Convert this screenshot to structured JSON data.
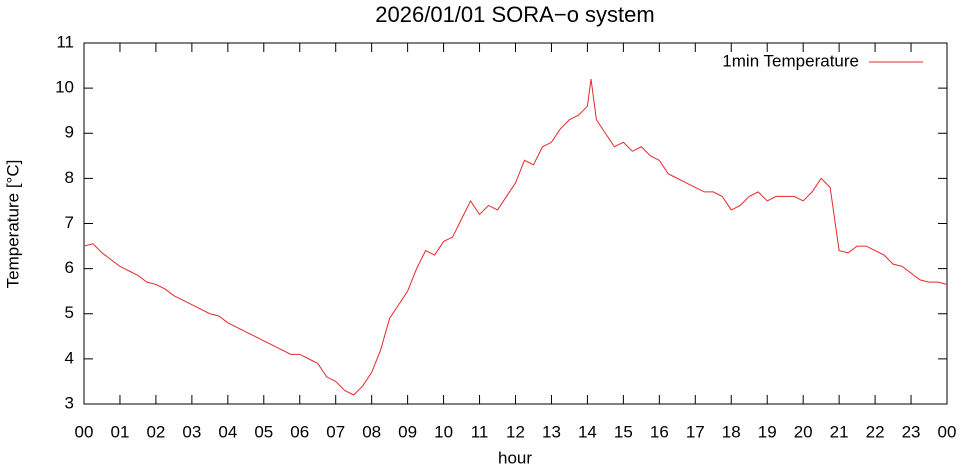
{
  "chart_data": {
    "type": "line",
    "title": "2026/01/01 SORA−o system",
    "x_label": "hour",
    "y_label": "Temperature [°C]",
    "x": [
      0,
      0.25,
      0.5,
      0.75,
      1,
      1.25,
      1.5,
      1.75,
      2,
      2.25,
      2.5,
      2.75,
      3,
      3.25,
      3.5,
      3.75,
      4,
      4.25,
      4.5,
      4.75,
      5,
      5.25,
      5.5,
      5.75,
      6,
      6.25,
      6.5,
      6.75,
      7,
      7.25,
      7.5,
      7.75,
      8,
      8.25,
      8.5,
      8.75,
      9,
      9.25,
      9.5,
      9.75,
      10,
      10.25,
      10.5,
      10.75,
      11,
      11.25,
      11.5,
      11.75,
      12,
      12.25,
      12.5,
      12.75,
      13,
      13.25,
      13.5,
      13.75,
      14,
      14.1,
      14.25,
      14.5,
      14.75,
      15,
      15.25,
      15.5,
      15.75,
      16,
      16.25,
      16.5,
      16.75,
      17,
      17.25,
      17.5,
      17.75,
      18,
      18.25,
      18.5,
      18.75,
      19,
      19.25,
      19.5,
      19.75,
      20,
      20.25,
      20.5,
      20.75,
      21,
      21.25,
      21.5,
      21.75,
      22,
      22.25,
      22.5,
      22.75,
      23,
      23.25,
      23.5,
      23.75,
      24
    ],
    "series": [
      {
        "name": "1min Temperature",
        "color": "#e8282a",
        "values": [
          6.5,
          6.55,
          6.35,
          6.2,
          6.05,
          5.95,
          5.85,
          5.7,
          5.65,
          5.55,
          5.4,
          5.3,
          5.2,
          5.1,
          5.0,
          4.95,
          4.8,
          4.7,
          4.6,
          4.5,
          4.4,
          4.3,
          4.2,
          4.1,
          4.1,
          4.0,
          3.9,
          3.6,
          3.5,
          3.3,
          3.2,
          3.4,
          3.7,
          4.2,
          4.9,
          5.2,
          5.5,
          6.0,
          6.4,
          6.3,
          6.6,
          6.7,
          7.1,
          7.5,
          7.2,
          7.4,
          7.3,
          7.6,
          7.9,
          8.4,
          8.3,
          8.7,
          8.8,
          9.1,
          9.3,
          9.4,
          9.6,
          10.2,
          9.3,
          9.0,
          8.7,
          8.8,
          8.6,
          8.7,
          8.5,
          8.4,
          8.1,
          8.0,
          7.9,
          7.8,
          7.7,
          7.7,
          7.6,
          7.3,
          7.4,
          7.6,
          7.7,
          7.5,
          7.6,
          7.6,
          7.6,
          7.5,
          7.7,
          8.0,
          7.8,
          6.4,
          6.35,
          6.5,
          6.5,
          6.4,
          6.3,
          6.1,
          6.05,
          5.9,
          5.75,
          5.7,
          5.7,
          5.65
        ]
      }
    ],
    "xlim": [
      0,
      24
    ],
    "xticks": [
      {
        "value": 0,
        "label": "00"
      },
      {
        "value": 1,
        "label": "01"
      },
      {
        "value": 2,
        "label": "02"
      },
      {
        "value": 3,
        "label": "03"
      },
      {
        "value": 4,
        "label": "04"
      },
      {
        "value": 5,
        "label": "05"
      },
      {
        "value": 6,
        "label": "06"
      },
      {
        "value": 7,
        "label": "07"
      },
      {
        "value": 8,
        "label": "08"
      },
      {
        "value": 9,
        "label": "09"
      },
      {
        "value": 10,
        "label": "10"
      },
      {
        "value": 11,
        "label": "11"
      },
      {
        "value": 12,
        "label": "12"
      },
      {
        "value": 13,
        "label": "13"
      },
      {
        "value": 14,
        "label": "14"
      },
      {
        "value": 15,
        "label": "15"
      },
      {
        "value": 16,
        "label": "16"
      },
      {
        "value": 17,
        "label": "17"
      },
      {
        "value": 18,
        "label": "18"
      },
      {
        "value": 19,
        "label": "19"
      },
      {
        "value": 20,
        "label": "20"
      },
      {
        "value": 21,
        "label": "21"
      },
      {
        "value": 22,
        "label": "22"
      },
      {
        "value": 23,
        "label": "23"
      },
      {
        "value": 24,
        "label": "00"
      }
    ],
    "ylim": [
      3,
      11
    ],
    "yticks": [
      3,
      4,
      5,
      6,
      7,
      8,
      9,
      10,
      11
    ],
    "legend": "top-right"
  }
}
